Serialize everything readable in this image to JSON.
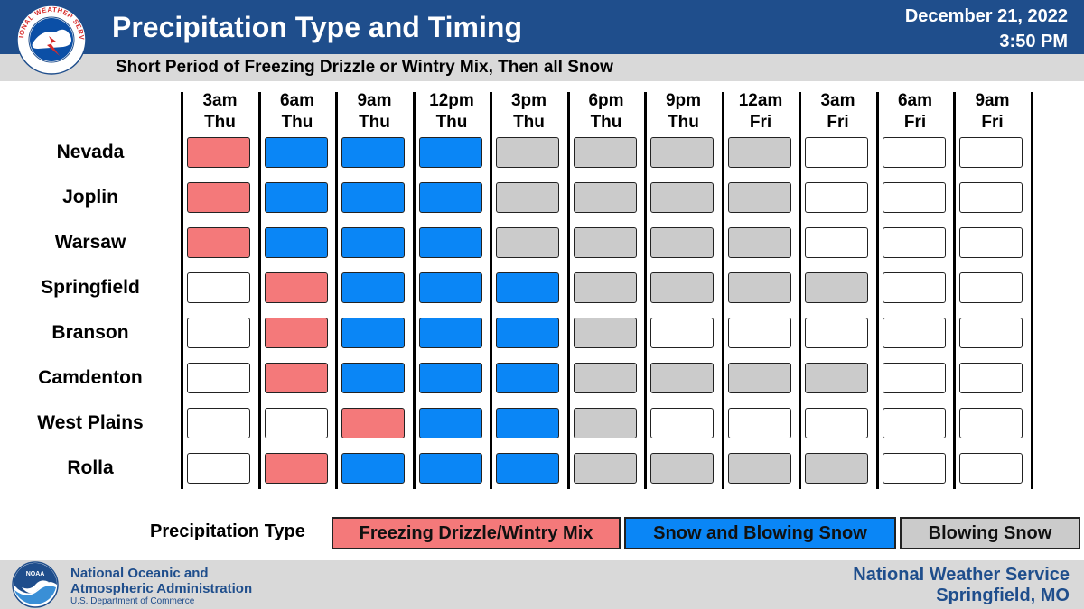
{
  "header": {
    "title": "Precipitation Type and Timing",
    "date": "December 21, 2022",
    "time": "3:50 PM",
    "subtitle": "Short Period of Freezing Drizzle or Wintry Mix, Then all Snow",
    "logo_text": "NATIONAL WEATHER SERVICE"
  },
  "columns": [
    {
      "time": "3am",
      "day": "Thu"
    },
    {
      "time": "6am",
      "day": "Thu"
    },
    {
      "time": "9am",
      "day": "Thu"
    },
    {
      "time": "12pm",
      "day": "Thu"
    },
    {
      "time": "3pm",
      "day": "Thu"
    },
    {
      "time": "6pm",
      "day": "Thu"
    },
    {
      "time": "9pm",
      "day": "Thu"
    },
    {
      "time": "12am",
      "day": "Fri"
    },
    {
      "time": "3am",
      "day": "Fri"
    },
    {
      "time": "6am",
      "day": "Fri"
    },
    {
      "time": "9am",
      "day": "Fri"
    }
  ],
  "rows": [
    {
      "name": "Nevada",
      "cells": [
        "F",
        "S",
        "S",
        "S",
        "B",
        "B",
        "B",
        "B",
        "N",
        "N",
        "N"
      ]
    },
    {
      "name": "Joplin",
      "cells": [
        "F",
        "S",
        "S",
        "S",
        "B",
        "B",
        "B",
        "B",
        "N",
        "N",
        "N"
      ]
    },
    {
      "name": "Warsaw",
      "cells": [
        "F",
        "S",
        "S",
        "S",
        "B",
        "B",
        "B",
        "B",
        "N",
        "N",
        "N"
      ]
    },
    {
      "name": "Springfield",
      "cells": [
        "N",
        "F",
        "S",
        "S",
        "S",
        "B",
        "B",
        "B",
        "B",
        "N",
        "N"
      ]
    },
    {
      "name": "Branson",
      "cells": [
        "N",
        "F",
        "S",
        "S",
        "S",
        "B",
        "N",
        "N",
        "N",
        "N",
        "N"
      ]
    },
    {
      "name": "Camdenton",
      "cells": [
        "N",
        "F",
        "S",
        "S",
        "S",
        "B",
        "B",
        "B",
        "B",
        "N",
        "N"
      ]
    },
    {
      "name": "West Plains",
      "cells": [
        "N",
        "N",
        "F",
        "S",
        "S",
        "B",
        "N",
        "N",
        "N",
        "N",
        "N"
      ]
    },
    {
      "name": "Rolla",
      "cells": [
        "N",
        "F",
        "S",
        "S",
        "S",
        "B",
        "B",
        "B",
        "B",
        "N",
        "N"
      ]
    }
  ],
  "cell_types": {
    "F": "Freezing Drizzle/Wintry Mix",
    "S": "Snow and Blowing Snow",
    "B": "Blowing Snow",
    "N": "None"
  },
  "legend": {
    "title": "Precipitation Type",
    "items": [
      {
        "code": "F",
        "label": "Freezing Drizzle/Wintry Mix",
        "color": "#f4797a"
      },
      {
        "code": "S",
        "label": "Snow and Blowing Snow",
        "color": "#0a86f6"
      },
      {
        "code": "B",
        "label": "Blowing Snow",
        "color": "#cbcbcb"
      }
    ]
  },
  "footer": {
    "noaa_line1": "National Oceanic and",
    "noaa_line2": "Atmospheric Administration",
    "noaa_dept": "U.S. Department of Commerce",
    "noaa_logo_text": "NOAA",
    "office_line1": "National Weather Service",
    "office_line2": "Springfield, MO"
  },
  "colors": {
    "header_blue": "#1f4e8c",
    "band_gray": "#d9d9d9"
  }
}
